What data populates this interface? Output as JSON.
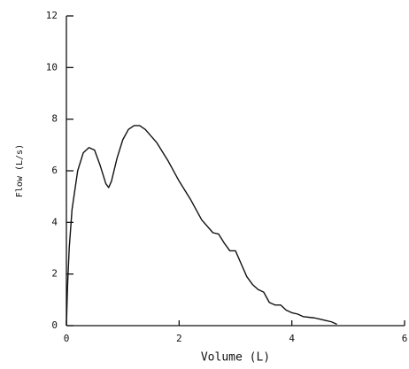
{
  "chart_data": {
    "type": "line",
    "x_label": "Volume (L)",
    "y_label": "Flow (L/s)",
    "xlim": [
      0,
      6
    ],
    "ylim": [
      0,
      12
    ],
    "xticks": [
      0,
      2,
      4,
      6
    ],
    "yticks": [
      0,
      2,
      4,
      6,
      8,
      10,
      12
    ],
    "grid": false,
    "series": [
      {
        "color": "#111111",
        "x": [
          0,
          0.02,
          0.05,
          0.1,
          0.2,
          0.3,
          0.4,
          0.5,
          0.6,
          0.7,
          0.75,
          0.8,
          0.9,
          1.0,
          1.1,
          1.2,
          1.3,
          1.4,
          1.6,
          1.8,
          2.0,
          2.2,
          2.4,
          2.6,
          2.7,
          2.8,
          2.9,
          3.0,
          3.1,
          3.2,
          3.3,
          3.4,
          3.5,
          3.6,
          3.7,
          3.8,
          3.9,
          4.0,
          4.1,
          4.2,
          4.4,
          4.5,
          4.6,
          4.7,
          4.8
        ],
        "values": [
          0,
          1.5,
          3,
          4.5,
          6,
          6.7,
          6.9,
          6.8,
          6.2,
          5.5,
          5.35,
          5.6,
          6.5,
          7.2,
          7.6,
          7.75,
          7.75,
          7.6,
          7.1,
          6.4,
          5.6,
          4.9,
          4.1,
          3.6,
          3.55,
          3.2,
          2.9,
          2.9,
          2.4,
          1.9,
          1.6,
          1.4,
          1.3,
          0.9,
          0.8,
          0.8,
          0.6,
          0.5,
          0.45,
          0.35,
          0.3,
          0.25,
          0.2,
          0.15,
          0.05
        ]
      }
    ]
  }
}
